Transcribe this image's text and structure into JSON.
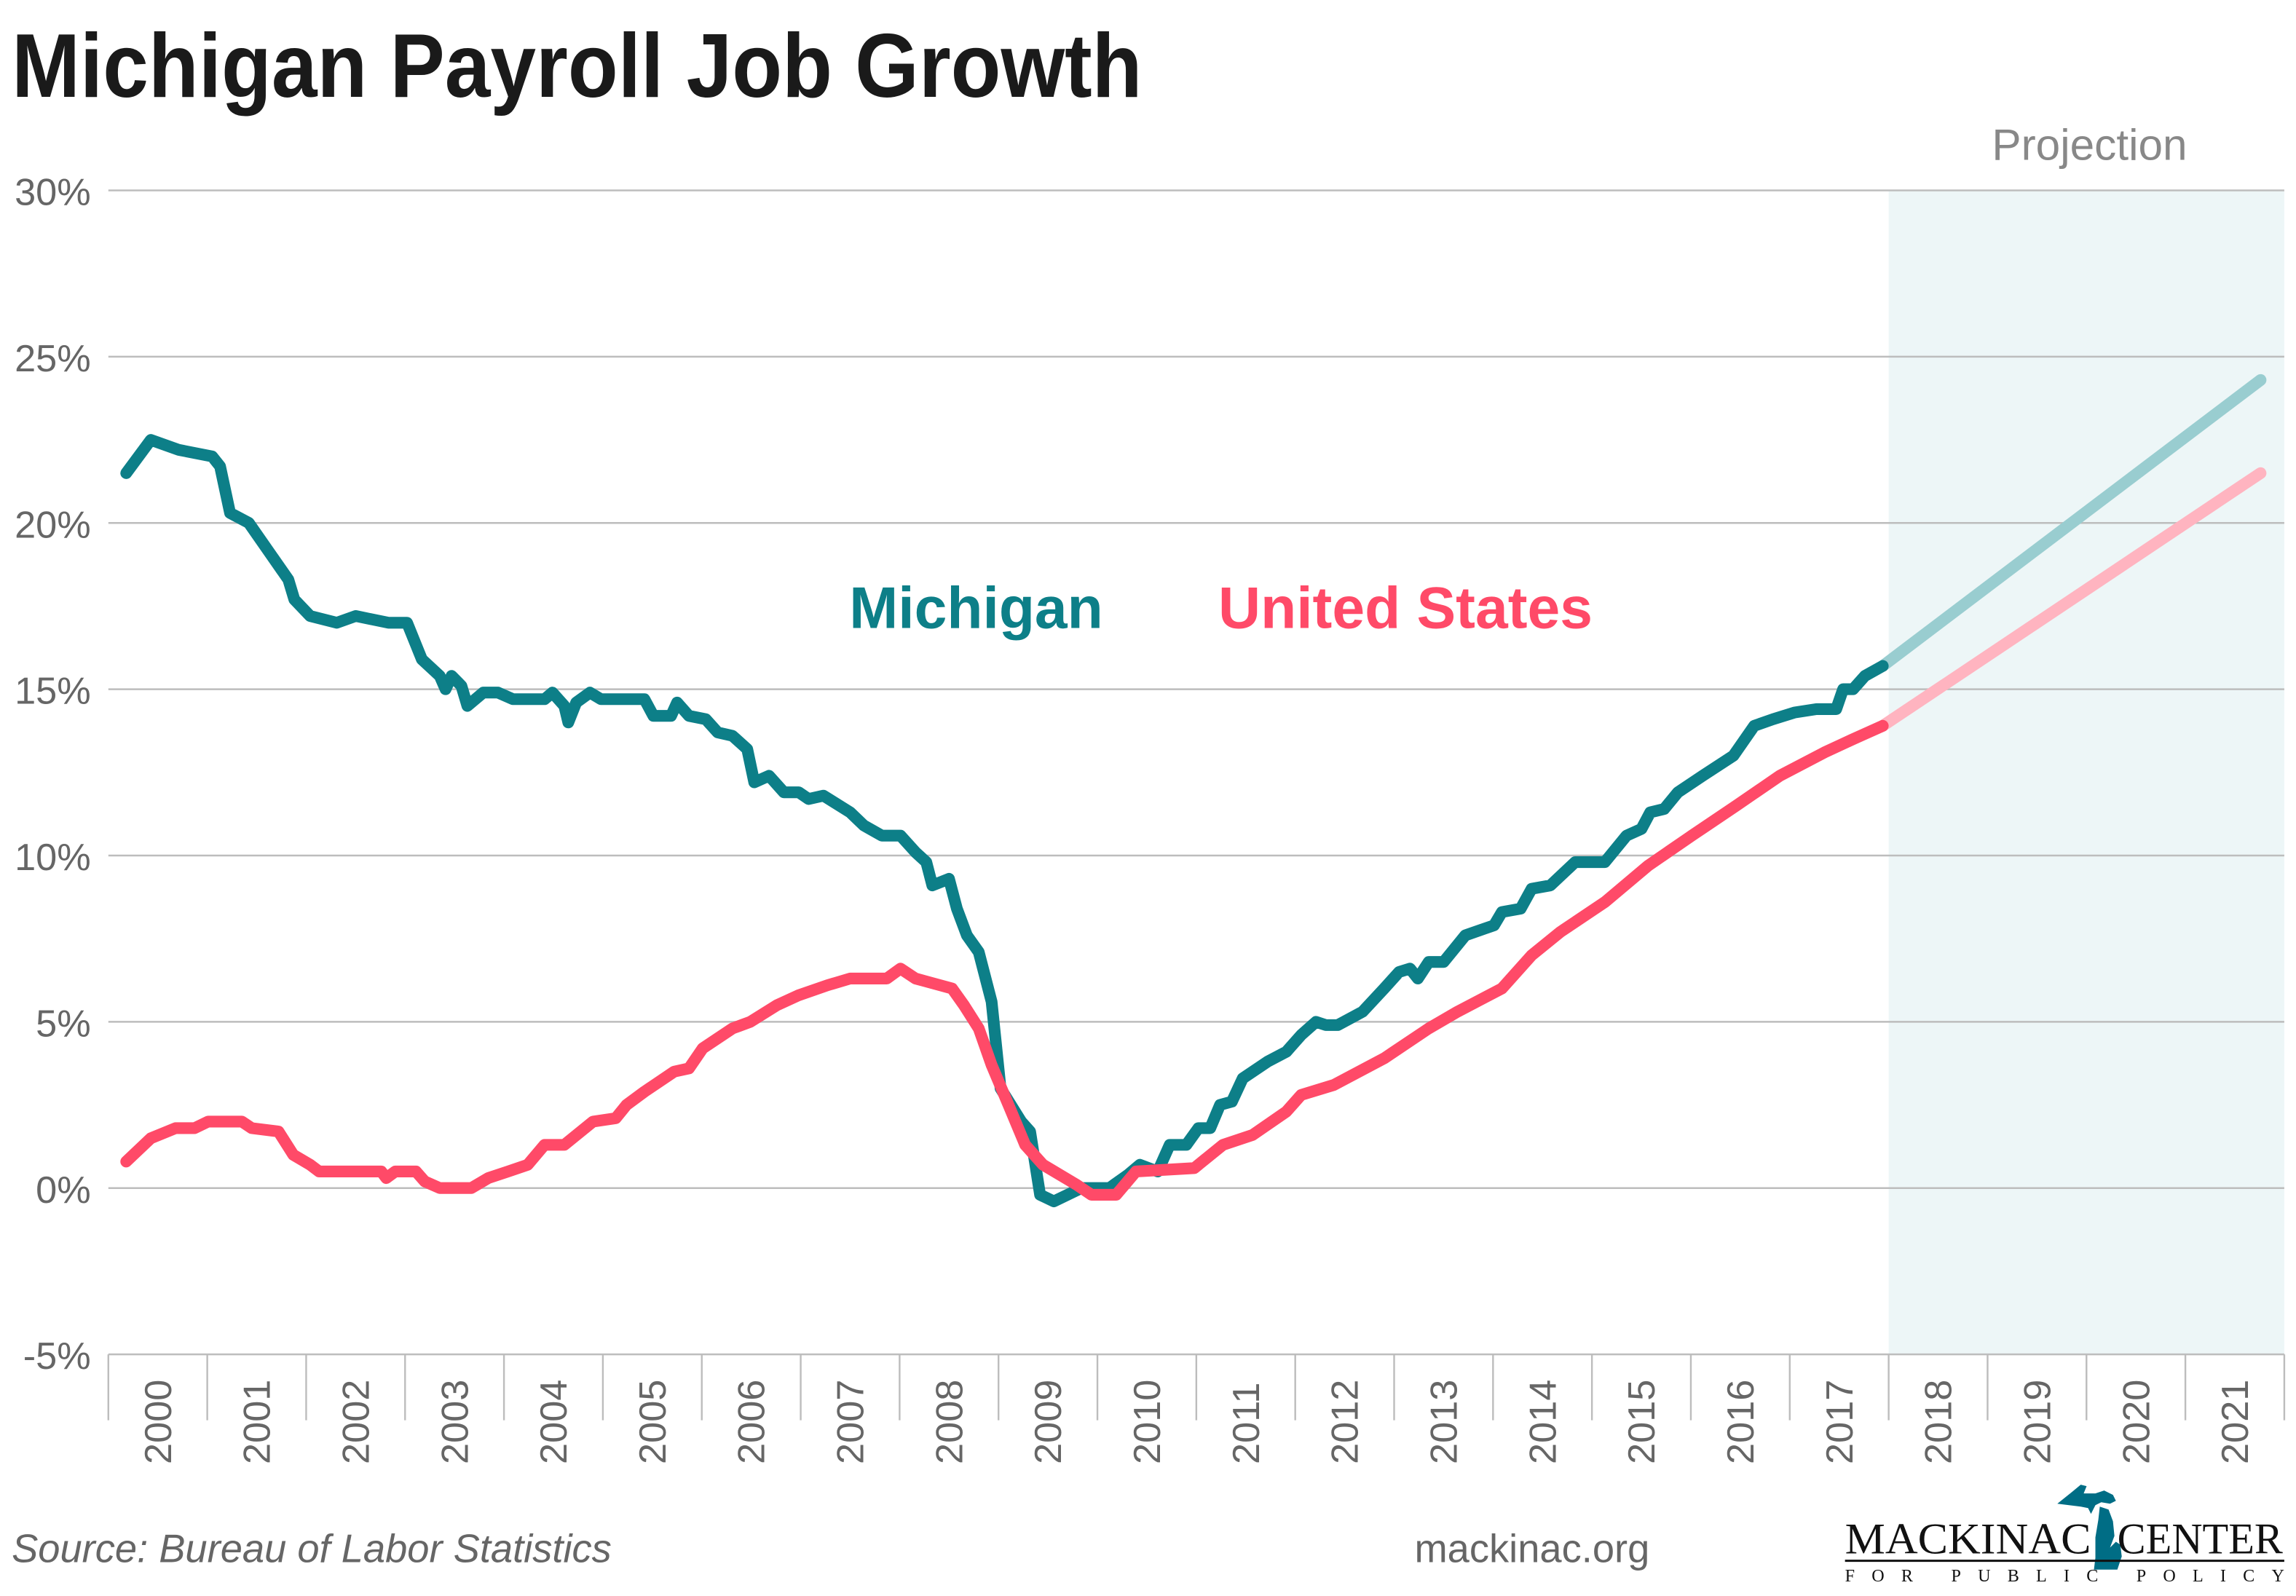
{
  "title": "Michigan Payroll Job Growth",
  "projection_label": "Projection",
  "source": "Source: Bureau of Labor Statistics",
  "website": "mackinac.org",
  "logo": {
    "line1_left": "MACKINAC",
    "line1_right": "CENTER",
    "line2": "FOR PUBLIC POLICY",
    "icon": "michigan-map-icon"
  },
  "colors": {
    "michigan": "#0d7f88",
    "united_states": "#ff4a68",
    "michigan_projection": "#99cdd0",
    "united_states_projection": "#ffb4c0",
    "projection_shade": "#edf6f7",
    "grid": "#bdbdbd",
    "text": "#666666"
  },
  "chart_data": {
    "type": "line",
    "title": "Michigan Payroll Job Growth",
    "xlabel": "",
    "ylabel": "",
    "ylim": [
      -5,
      30
    ],
    "xlim": [
      2000,
      2022
    ],
    "yticks": [
      "30%",
      "25%",
      "20%",
      "15%",
      "10%",
      "5%",
      "0%",
      "-5%"
    ],
    "ytick_values": [
      30,
      25,
      20,
      15,
      10,
      5,
      0,
      -5
    ],
    "xticks": [
      "2000",
      "2001",
      "2002",
      "2003",
      "2004",
      "2005",
      "2006",
      "2007",
      "2008",
      "2009",
      "2010",
      "2011",
      "2012",
      "2013",
      "2014",
      "2015",
      "2016",
      "2017",
      "2018",
      "2019",
      "2020",
      "2021"
    ],
    "grid": true,
    "projection_start": 2018,
    "legend_placement": "center",
    "series": [
      {
        "name": "Michigan",
        "key": "michigan",
        "points": [
          [
            2000.18,
            21.5
          ],
          [
            2000.43,
            22.5
          ],
          [
            2000.71,
            22.2
          ],
          [
            2001.05,
            22.0
          ],
          [
            2001.13,
            21.7
          ],
          [
            2001.23,
            20.3
          ],
          [
            2001.42,
            20.0
          ],
          [
            2001.82,
            18.3
          ],
          [
            2001.88,
            17.7
          ],
          [
            2002.04,
            17.2
          ],
          [
            2002.31,
            17.0
          ],
          [
            2002.5,
            17.2
          ],
          [
            2002.83,
            17.0
          ],
          [
            2003.02,
            17.0
          ],
          [
            2003.17,
            15.9
          ],
          [
            2003.35,
            15.4
          ],
          [
            2003.41,
            15.0
          ],
          [
            2003.47,
            15.4
          ],
          [
            2003.57,
            15.1
          ],
          [
            2003.63,
            14.5
          ],
          [
            2003.79,
            14.9
          ],
          [
            2003.94,
            14.9
          ],
          [
            2004.09,
            14.7
          ],
          [
            2004.41,
            14.7
          ],
          [
            2004.49,
            14.9
          ],
          [
            2004.61,
            14.5
          ],
          [
            2004.65,
            14.0
          ],
          [
            2004.73,
            14.6
          ],
          [
            2004.87,
            14.9
          ],
          [
            2004.98,
            14.7
          ],
          [
            2005.42,
            14.7
          ],
          [
            2005.51,
            14.2
          ],
          [
            2005.69,
            14.2
          ],
          [
            2005.75,
            14.6
          ],
          [
            2005.87,
            14.2
          ],
          [
            2006.04,
            14.1
          ],
          [
            2006.16,
            13.7
          ],
          [
            2006.31,
            13.6
          ],
          [
            2006.46,
            13.2
          ],
          [
            2006.53,
            12.2
          ],
          [
            2006.68,
            12.4
          ],
          [
            2006.83,
            11.9
          ],
          [
            2006.98,
            11.9
          ],
          [
            2007.08,
            11.7
          ],
          [
            2007.23,
            11.8
          ],
          [
            2007.5,
            11.3
          ],
          [
            2007.64,
            10.9
          ],
          [
            2007.82,
            10.6
          ],
          [
            2008.01,
            10.6
          ],
          [
            2008.16,
            10.1
          ],
          [
            2008.27,
            9.8
          ],
          [
            2008.33,
            9.1
          ],
          [
            2008.5,
            9.3
          ],
          [
            2008.58,
            8.4
          ],
          [
            2008.68,
            7.6
          ],
          [
            2008.8,
            7.1
          ],
          [
            2008.93,
            5.6
          ],
          [
            2009.02,
            3.0
          ],
          [
            2009.23,
            2.0
          ],
          [
            2009.32,
            1.7
          ],
          [
            2009.42,
            -0.2
          ],
          [
            2009.56,
            -0.4
          ],
          [
            2009.84,
            0.0
          ],
          [
            2010.12,
            0.0
          ],
          [
            2010.31,
            0.4
          ],
          [
            2010.43,
            0.7
          ],
          [
            2010.61,
            0.5
          ],
          [
            2010.73,
            1.3
          ],
          [
            2010.9,
            1.3
          ],
          [
            2011.02,
            1.8
          ],
          [
            2011.14,
            1.8
          ],
          [
            2011.24,
            2.5
          ],
          [
            2011.36,
            2.6
          ],
          [
            2011.47,
            3.3
          ],
          [
            2011.72,
            3.8
          ],
          [
            2011.91,
            4.1
          ],
          [
            2012.06,
            4.6
          ],
          [
            2012.21,
            5.0
          ],
          [
            2012.31,
            4.9
          ],
          [
            2012.43,
            4.9
          ],
          [
            2012.68,
            5.3
          ],
          [
            2012.9,
            6.0
          ],
          [
            2013.05,
            6.5
          ],
          [
            2013.16,
            6.6
          ],
          [
            2013.24,
            6.3
          ],
          [
            2013.35,
            6.8
          ],
          [
            2013.5,
            6.8
          ],
          [
            2013.72,
            7.6
          ],
          [
            2013.91,
            7.8
          ],
          [
            2014.01,
            7.9
          ],
          [
            2014.09,
            8.3
          ],
          [
            2014.28,
            8.4
          ],
          [
            2014.39,
            9.0
          ],
          [
            2014.58,
            9.1
          ],
          [
            2014.83,
            9.8
          ],
          [
            2015.13,
            9.8
          ],
          [
            2015.35,
            10.6
          ],
          [
            2015.5,
            10.8
          ],
          [
            2015.59,
            11.3
          ],
          [
            2015.73,
            11.4
          ],
          [
            2015.87,
            11.9
          ],
          [
            2016.12,
            12.4
          ],
          [
            2016.43,
            13.0
          ],
          [
            2016.64,
            13.9
          ],
          [
            2016.83,
            14.1
          ],
          [
            2017.05,
            14.3
          ],
          [
            2017.27,
            14.4
          ],
          [
            2017.47,
            14.4
          ],
          [
            2017.54,
            15.0
          ],
          [
            2017.64,
            15.0
          ],
          [
            2017.76,
            15.4
          ],
          [
            2017.94,
            15.7
          ]
        ],
        "projection": [
          [
            2017.94,
            15.7
          ],
          [
            2021.76,
            24.3
          ]
        ]
      },
      {
        "name": "United States",
        "key": "united_states",
        "points": [
          [
            2000.18,
            0.8
          ],
          [
            2000.43,
            1.5
          ],
          [
            2000.68,
            1.8
          ],
          [
            2000.87,
            1.8
          ],
          [
            2001.01,
            2.0
          ],
          [
            2001.35,
            2.0
          ],
          [
            2001.45,
            1.8
          ],
          [
            2001.72,
            1.7
          ],
          [
            2001.87,
            1.0
          ],
          [
            2002.04,
            0.7
          ],
          [
            2002.13,
            0.5
          ],
          [
            2002.76,
            0.5
          ],
          [
            2002.81,
            0.3
          ],
          [
            2002.9,
            0.5
          ],
          [
            2003.11,
            0.5
          ],
          [
            2003.2,
            0.2
          ],
          [
            2003.35,
            0.0
          ],
          [
            2003.67,
            0.0
          ],
          [
            2003.84,
            0.3
          ],
          [
            2004.04,
            0.5
          ],
          [
            2004.24,
            0.7
          ],
          [
            2004.41,
            1.3
          ],
          [
            2004.61,
            1.3
          ],
          [
            2004.9,
            2.0
          ],
          [
            2005.13,
            2.1
          ],
          [
            2005.24,
            2.5
          ],
          [
            2005.42,
            2.9
          ],
          [
            2005.72,
            3.5
          ],
          [
            2005.87,
            3.6
          ],
          [
            2006.01,
            4.2
          ],
          [
            2006.31,
            4.8
          ],
          [
            2006.49,
            5.0
          ],
          [
            2006.76,
            5.5
          ],
          [
            2006.98,
            5.8
          ],
          [
            2007.27,
            6.1
          ],
          [
            2007.5,
            6.3
          ],
          [
            2007.87,
            6.3
          ],
          [
            2008.01,
            6.6
          ],
          [
            2008.16,
            6.3
          ],
          [
            2008.53,
            6.0
          ],
          [
            2008.65,
            5.5
          ],
          [
            2008.8,
            4.8
          ],
          [
            2008.93,
            3.7
          ],
          [
            2009.1,
            2.5
          ],
          [
            2009.27,
            1.3
          ],
          [
            2009.45,
            0.7
          ],
          [
            2009.79,
            0.1
          ],
          [
            2009.94,
            -0.2
          ],
          [
            2010.19,
            -0.2
          ],
          [
            2010.39,
            0.5
          ],
          [
            2010.98,
            0.6
          ],
          [
            2011.27,
            1.3
          ],
          [
            2011.57,
            1.6
          ],
          [
            2011.91,
            2.3
          ],
          [
            2012.06,
            2.8
          ],
          [
            2012.39,
            3.1
          ],
          [
            2012.9,
            3.9
          ],
          [
            2013.35,
            4.8
          ],
          [
            2013.64,
            5.3
          ],
          [
            2014.09,
            6.0
          ],
          [
            2014.39,
            7.0
          ],
          [
            2014.68,
            7.7
          ],
          [
            2015.13,
            8.6
          ],
          [
            2015.57,
            9.7
          ],
          [
            2016.01,
            10.6
          ],
          [
            2016.46,
            11.5
          ],
          [
            2016.9,
            12.4
          ],
          [
            2017.35,
            13.1
          ],
          [
            2017.64,
            13.5
          ],
          [
            2017.94,
            13.9
          ]
        ],
        "projection": [
          [
            2017.94,
            13.9
          ],
          [
            2021.76,
            21.5
          ]
        ]
      }
    ]
  }
}
